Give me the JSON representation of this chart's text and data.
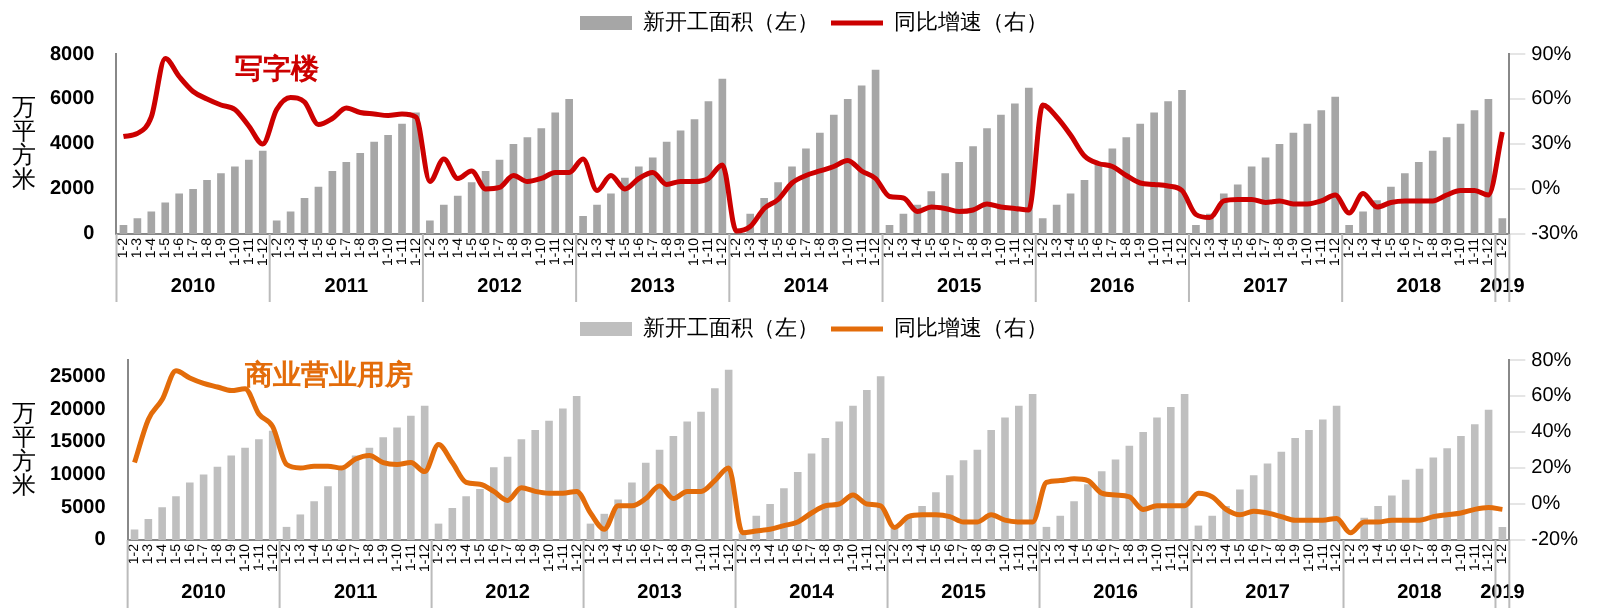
{
  "chart_data": [
    {
      "type": "bar",
      "ylabel": "万平方米",
      "legend": "top",
      "grid": false,
      "marker": "none",
      "categories": [
        "1-2",
        "1-3",
        "1-4",
        "1-5",
        "1-6",
        "1-7",
        "1-8",
        "1-9",
        "1-10",
        "1-11",
        "1-12",
        "1-2",
        "1-3",
        "1-4",
        "1-5",
        "1-6",
        "1-7",
        "1-8",
        "1-9",
        "1-10",
        "1-11",
        "1-12",
        "1-2",
        "1-3",
        "1-4",
        "1-5",
        "1-6",
        "1-7",
        "1-8",
        "1-9",
        "1-10",
        "1-11",
        "1-12",
        "1-2",
        "1-3",
        "1-4",
        "1-5",
        "1-6",
        "1-7",
        "1-8",
        "1-9",
        "1-10",
        "1-11",
        "1-12",
        "1-2",
        "1-3",
        "1-4",
        "1-5",
        "1-6",
        "1-7",
        "1-8",
        "1-9",
        "1-10",
        "1-11",
        "1-12",
        "1-2",
        "1-3",
        "1-4",
        "1-5",
        "1-6",
        "1-7",
        "1-8",
        "1-9",
        "1-10",
        "1-11",
        "1-12",
        "1-2",
        "1-3",
        "1-4",
        "1-5",
        "1-6",
        "1-7",
        "1-8",
        "1-9",
        "1-10",
        "1-11",
        "1-12",
        "1-2",
        "1-3",
        "1-4",
        "1-5",
        "1-6",
        "1-7",
        "1-8",
        "1-9",
        "1-10",
        "1-11",
        "1-12",
        "1-2",
        "1-3",
        "1-4",
        "1-5",
        "1-6",
        "1-7",
        "1-8",
        "1-9",
        "1-10",
        "1-11",
        "1-12",
        "1-2"
      ],
      "ylim": [
        0,
        8000
      ],
      "yticks": [
        0,
        2000,
        4000,
        6000,
        8000
      ],
      "y2lim": [
        -30,
        90
      ],
      "y2ticks": [
        {
          "value": -30,
          "label": "-30%"
        },
        {
          "value": 0,
          "label": "0%"
        },
        {
          "value": 30,
          "label": "30%"
        },
        {
          "value": 60,
          "label": "60%"
        },
        {
          "value": 90,
          "label": "90%"
        }
      ],
      "series": [
        {
          "name": "新开工面积（左）",
          "color": "#a6a6a6",
          "values": [
            400,
            700,
            1000,
            1400,
            1800,
            2000,
            2400,
            2700,
            3000,
            3300,
            3700,
            600,
            1000,
            1600,
            2100,
            2800,
            3200,
            3600,
            4100,
            4400,
            4900,
            5400,
            600,
            1300,
            1700,
            2300,
            2800,
            3300,
            4000,
            4300,
            4700,
            5400,
            6000,
            800,
            1300,
            1800,
            2500,
            3000,
            3400,
            4100,
            4600,
            5100,
            5900,
            6900,
            null,
            900,
            1600,
            2300,
            3000,
            3800,
            4500,
            5300,
            6000,
            6600,
            7300,
            400,
            900,
            1300,
            1900,
            2700,
            3200,
            3900,
            4700,
            5300,
            5800,
            6500,
            700,
            1300,
            1800,
            2400,
            3200,
            3800,
            4300,
            4900,
            5400,
            5900,
            6400,
            400,
            900,
            1800,
            2200,
            3000,
            3400,
            4000,
            4500,
            4900,
            5500,
            6100,
            400,
            1000,
            1500,
            2100,
            2700,
            3200,
            3700,
            4300,
            4900,
            5500,
            6000,
            700
          ]
        },
        {
          "type": "line",
          "name": "同比增速（右）",
          "color": "#cc0000",
          "axis": "y2",
          "values": [
            35,
            37,
            48,
            87,
            75,
            65,
            60,
            56,
            53,
            42,
            30,
            53,
            61,
            58,
            43,
            47,
            54,
            51,
            50,
            49,
            50,
            48,
            5,
            20,
            7,
            12,
            0,
            1,
            9,
            5,
            7,
            11,
            11,
            20,
            -1,
            9,
            0,
            7,
            11,
            3,
            5,
            5,
            7,
            16,
            -28,
            -25,
            -13,
            -7,
            4,
            9,
            12,
            15,
            19,
            12,
            7,
            -5,
            -6,
            -15,
            -12,
            -13,
            -15,
            -14,
            -10,
            -12,
            -13,
            -14,
            56,
            48,
            36,
            22,
            17,
            15,
            9,
            4,
            3,
            2,
            -1,
            -17,
            -19,
            -8,
            -7,
            -7,
            -9,
            -8,
            -10,
            -10,
            -8,
            -4,
            -16,
            -3,
            -12,
            -9,
            -8,
            -8,
            -8,
            -4,
            -1,
            -1,
            -4,
            38
          ]
        }
      ],
      "annotations": [
        "写字楼",
        "2010",
        "2011",
        "2012",
        "2013",
        "2014",
        "2015",
        "2016",
        "2017",
        "2018",
        "2019"
      ]
    },
    {
      "type": "bar",
      "ylabel": "万平方米",
      "legend": "top",
      "grid": false,
      "marker": "none",
      "categories": [
        "1-2",
        "1-3",
        "1-4",
        "1-5",
        "1-6",
        "1-7",
        "1-8",
        "1-9",
        "1-10",
        "1-11",
        "1-12",
        "1-2",
        "1-3",
        "1-4",
        "1-5",
        "1-6",
        "1-7",
        "1-8",
        "1-9",
        "1-10",
        "1-11",
        "1-12",
        "1-2",
        "1-3",
        "1-4",
        "1-5",
        "1-6",
        "1-7",
        "1-8",
        "1-9",
        "1-10",
        "1-11",
        "1-12",
        "1-2",
        "1-3",
        "1-4",
        "1-5",
        "1-6",
        "1-7",
        "1-8",
        "1-9",
        "1-10",
        "1-11",
        "1-12",
        "1-2",
        "1-3",
        "1-4",
        "1-5",
        "1-6",
        "1-7",
        "1-8",
        "1-9",
        "1-10",
        "1-11",
        "1-12",
        "1-2",
        "1-3",
        "1-4",
        "1-5",
        "1-6",
        "1-7",
        "1-8",
        "1-9",
        "1-10",
        "1-11",
        "1-12",
        "1-2",
        "1-3",
        "1-4",
        "1-5",
        "1-6",
        "1-7",
        "1-8",
        "1-9",
        "1-10",
        "1-11",
        "1-12",
        "1-2",
        "1-3",
        "1-4",
        "1-5",
        "1-6",
        "1-7",
        "1-8",
        "1-9",
        "1-10",
        "1-11",
        "1-12",
        "1-2",
        "1-3",
        "1-4",
        "1-5",
        "1-6",
        "1-7",
        "1-8",
        "1-9",
        "1-10",
        "1-11",
        "1-12",
        "1-2"
      ],
      "ylim": [
        0,
        27500
      ],
      "yticks": [
        0,
        5000,
        10000,
        15000,
        20000,
        25000
      ],
      "y2lim": [
        -20,
        80
      ],
      "y2ticks": [
        {
          "value": -20,
          "label": "-20%"
        },
        {
          "value": 0,
          "label": "0%"
        },
        {
          "value": 20,
          "label": "20%"
        },
        {
          "value": 40,
          "label": "40%"
        },
        {
          "value": 60,
          "label": "60%"
        },
        {
          "value": 80,
          "label": "80%"
        }
      ],
      "series": [
        {
          "name": "新开工面积（左）",
          "color": "#bfbfbf",
          "values": [
            1600,
            3200,
            5000,
            6700,
            8800,
            10000,
            11200,
            12900,
            14100,
            15400,
            16700,
            2000,
            3900,
            5900,
            8200,
            11100,
            12900,
            14100,
            15700,
            17200,
            19000,
            20500,
            2500,
            4900,
            6700,
            7800,
            11100,
            12700,
            15400,
            16800,
            18200,
            20100,
            22000,
            2500,
            4000,
            6200,
            8800,
            11800,
            13800,
            15900,
            18100,
            19600,
            23200,
            26000,
            1000,
            3700,
            5500,
            7900,
            10400,
            13200,
            15600,
            18100,
            20500,
            22900,
            25000,
            1800,
            3700,
            5200,
            7300,
            9900,
            12200,
            13800,
            16800,
            18700,
            20500,
            22300,
            2000,
            3700,
            5900,
            8500,
            10500,
            12300,
            14400,
            16500,
            18700,
            20300,
            22300,
            2200,
            3700,
            5200,
            7700,
            9900,
            11700,
            13500,
            15600,
            16800,
            18400,
            20500,
            null,
            3400,
            5200,
            6800,
            9200,
            10900,
            12600,
            14000,
            15900,
            17700,
            19900,
            2000
          ]
        },
        {
          "type": "line",
          "name": "同比增速（右）",
          "color": "#e36c0a",
          "axis": "y2",
          "values": [
            23,
            47,
            58,
            74,
            70,
            67,
            65,
            63,
            64,
            50,
            43,
            22,
            20,
            21,
            21,
            20,
            25,
            27,
            23,
            22,
            23,
            18,
            33,
            23,
            12,
            11,
            7,
            2,
            9,
            7,
            6,
            6,
            7,
            -5,
            -14,
            -1,
            -1,
            3,
            10,
            3,
            7,
            7,
            13,
            20,
            -16,
            -15,
            -14,
            -12,
            -10,
            -5,
            -1,
            0,
            5,
            0,
            -1,
            -13,
            -7,
            -6,
            -6,
            -7,
            -10,
            -10,
            -6,
            -9,
            -10,
            -10,
            12,
            13,
            14,
            13,
            6,
            5,
            4,
            -3,
            -1,
            -1,
            -1,
            6,
            4,
            -3,
            -6,
            -4,
            -5,
            -7,
            -9,
            -9,
            -9,
            -8,
            -16,
            -10,
            -10,
            -9,
            -9,
            -9,
            -7,
            -6,
            -5,
            -3,
            -2,
            -3
          ]
        }
      ],
      "annotations": [
        "商业营业用房",
        "2010",
        "2011",
        "2012",
        "2013",
        "2014",
        "2015",
        "2016",
        "2017",
        "2018",
        "2019"
      ]
    }
  ]
}
